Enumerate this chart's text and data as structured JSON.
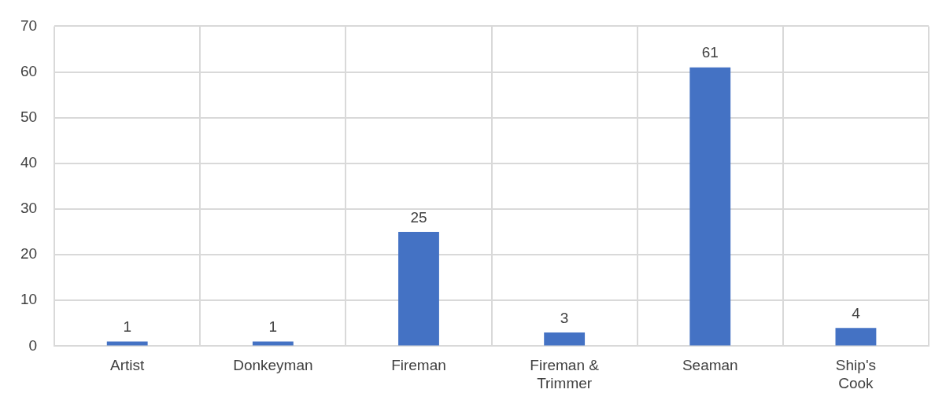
{
  "chart_data": {
    "type": "bar",
    "categories": [
      "Artist",
      "Donkeyman",
      "Fireman",
      "Fireman & Trimmer",
      "Seaman",
      "Ship's Cook"
    ],
    "values": [
      1,
      1,
      25,
      3,
      61,
      4
    ],
    "color": "#4472c4",
    "ylim": [
      0,
      70
    ],
    "yticks": [
      0,
      10,
      20,
      30,
      40,
      50,
      60,
      70
    ],
    "grid": true,
    "data_labels": true
  }
}
